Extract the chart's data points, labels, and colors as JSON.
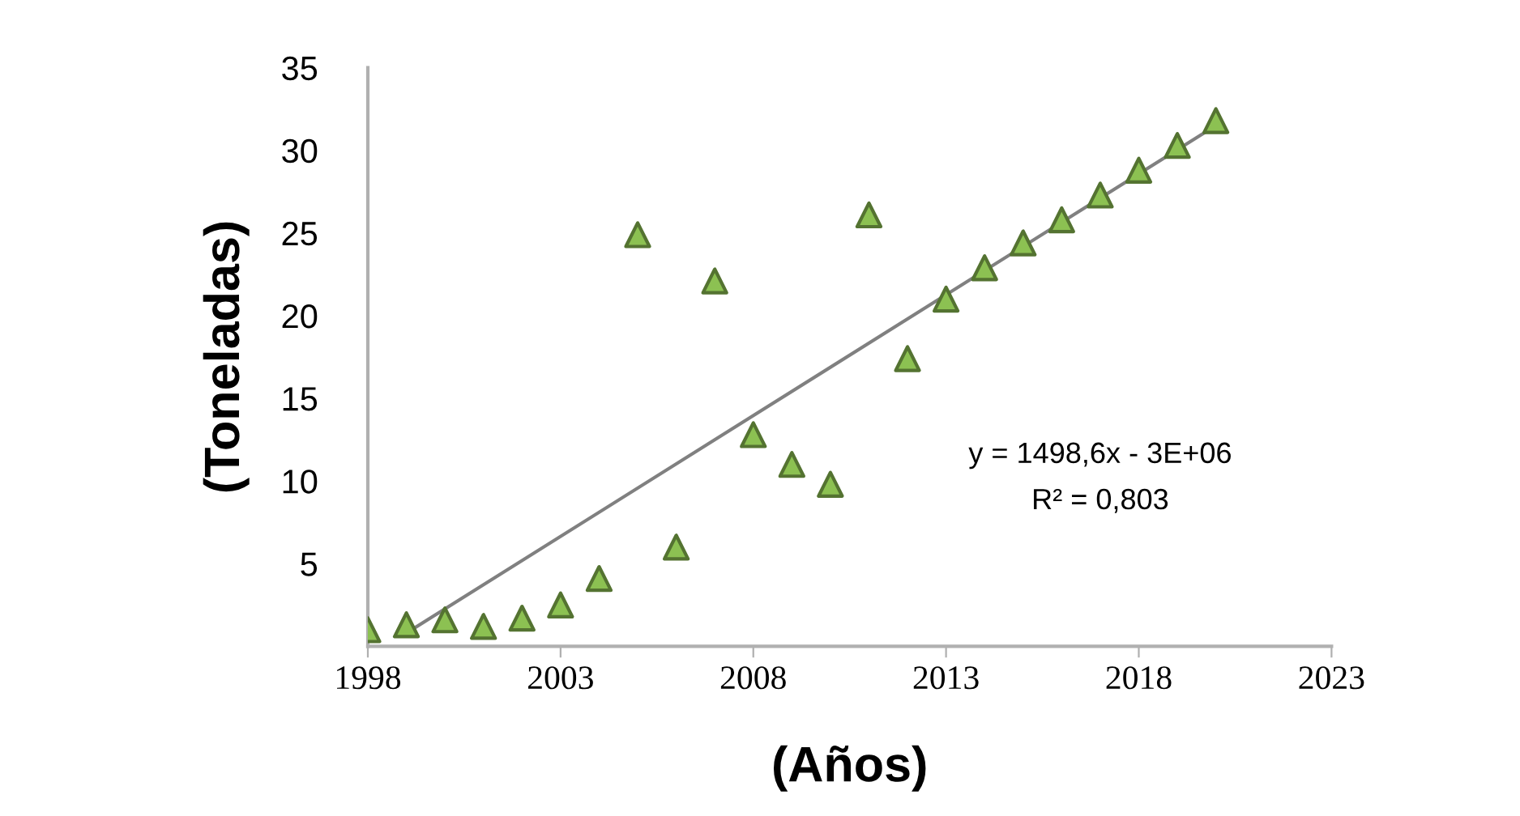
{
  "chart_data": {
    "type": "scatter",
    "xlabel": "(Años)",
    "ylabel": "(Toneladas)",
    "xlim": [
      1998,
      2023
    ],
    "xticks": [
      1998,
      2003,
      2008,
      2013,
      2018,
      2023
    ],
    "ylim": [
      0,
      35
    ],
    "yticks": [
      5,
      10,
      15,
      20,
      25,
      30,
      35
    ],
    "grid": false,
    "legend": false,
    "marker": "triangle",
    "series": [
      {
        "color": "#8cc152",
        "x": [
          1998,
          1999,
          2000,
          2001,
          2002,
          2003,
          2004,
          2005,
          2006,
          2007,
          2008,
          2009,
          2010,
          2011,
          2012,
          2013,
          2014,
          2015,
          2016,
          2017,
          2018,
          2019,
          2020
        ],
        "values": [
          1.0,
          1.3,
          1.6,
          1.2,
          1.7,
          2.5,
          4.1,
          24.9,
          6.0,
          22.1,
          12.8,
          11.0,
          9.8,
          26.1,
          17.4,
          21.0,
          22.9,
          24.4,
          25.8,
          27.3,
          28.8,
          30.3,
          31.8
        ]
      },
      {
        "type": "line",
        "color": "#808080",
        "line_style": "solid",
        "marker": "none",
        "x": [
          1999,
          2020
        ],
        "values": [
          0.8,
          31.5
        ]
      }
    ],
    "annotations": [
      "y = 1498,6x - 3E+06",
      "R² = 0,803"
    ]
  }
}
